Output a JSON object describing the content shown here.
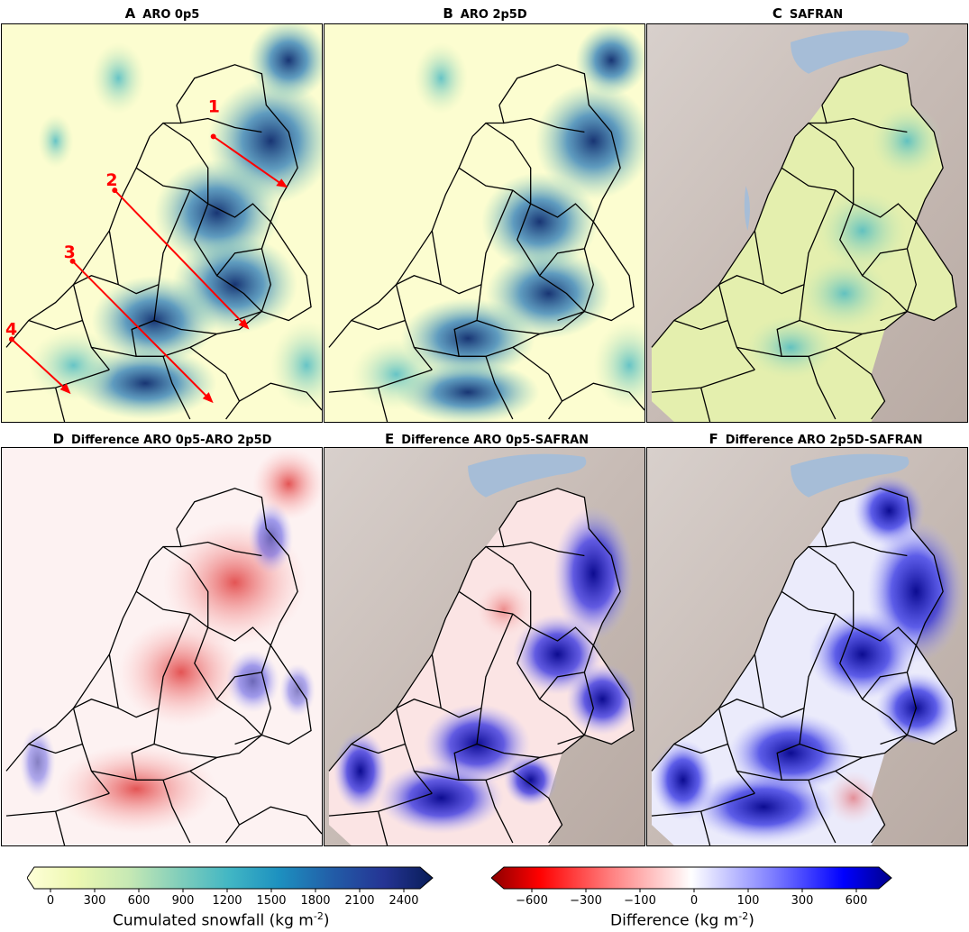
{
  "panels": {
    "A": {
      "letter": "A",
      "title": "ARO 0p5"
    },
    "B": {
      "letter": "B",
      "title": "ARO 2p5D"
    },
    "C": {
      "letter": "C",
      "title": "SAFRAN"
    },
    "D": {
      "letter": "D",
      "title": "Difference ARO 0p5-ARO 2p5D"
    },
    "E": {
      "letter": "E",
      "title": "Difference ARO 0p5-SAFRAN"
    },
    "F": {
      "letter": "F",
      "title": "Difference ARO 2p5D-SAFRAN"
    }
  },
  "transects": [
    {
      "label": "1"
    },
    {
      "label": "2"
    },
    {
      "label": "3"
    },
    {
      "label": "4"
    }
  ],
  "colorbar_snow": {
    "ticks": [
      "0",
      "300",
      "600",
      "900",
      "1200",
      "1500",
      "1800",
      "2100",
      "2400"
    ],
    "label": "Cumulated snowfall (kg m",
    "label_sup": "-2",
    "label_end": ")",
    "colors": [
      "#ffffd9",
      "#edf8b1",
      "#c7e9b4",
      "#7fcdbb",
      "#41b6c4",
      "#1d91c0",
      "#225ea8",
      "#253494",
      "#081d58"
    ]
  },
  "colorbar_diff": {
    "ticks": [
      "−600",
      "−300",
      "−100",
      "0",
      "100",
      "300",
      "600"
    ],
    "label": "Difference (kg m",
    "label_sup": "-2",
    "label_end": ")",
    "colors": [
      "#8b0000",
      "#ff0000",
      "#ff8080",
      "#ffffff",
      "#8080ff",
      "#0000ff",
      "#00008b"
    ]
  },
  "colors": {
    "transect": "#ff0000",
    "border": "#000000",
    "relief": "#c9beb8",
    "lake": "#a6bdd7"
  }
}
